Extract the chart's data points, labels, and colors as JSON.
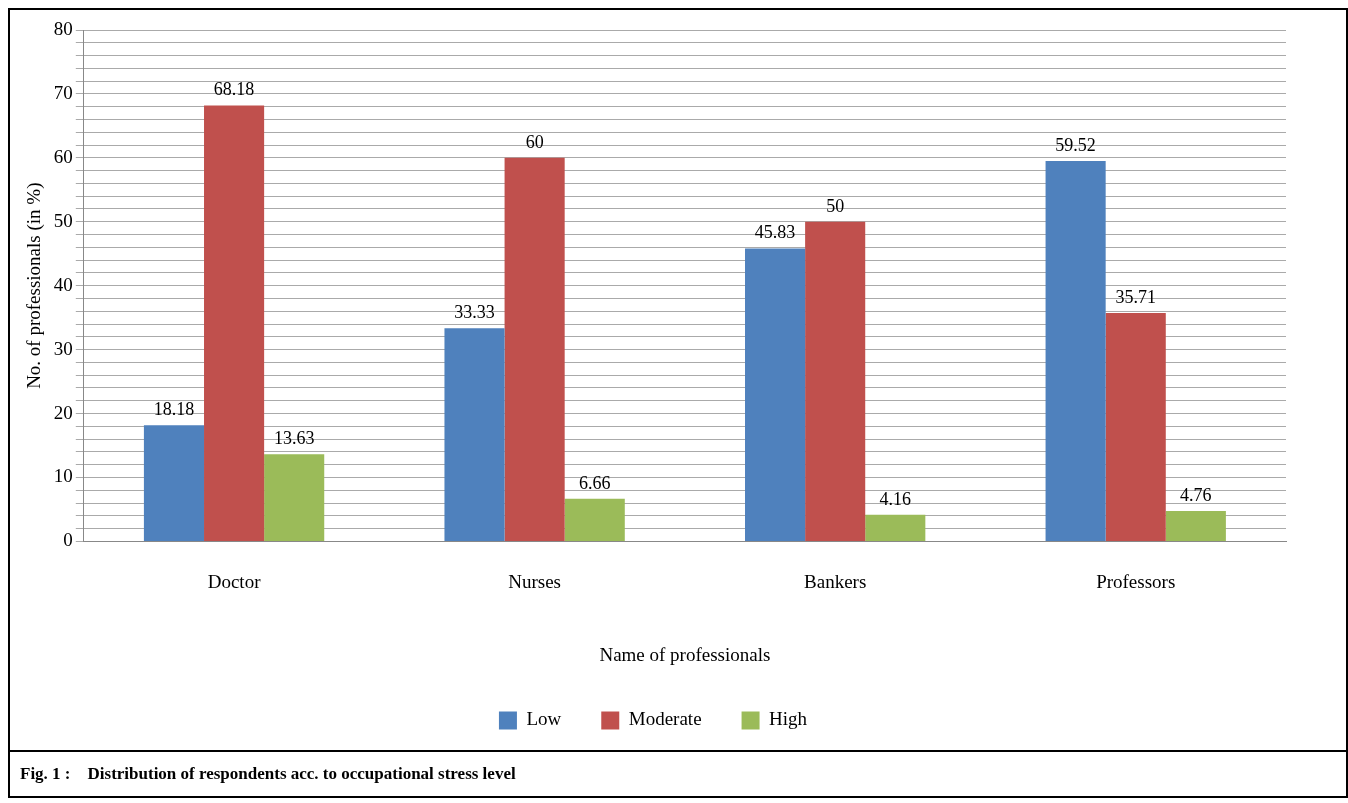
{
  "chart_data": {
    "type": "bar",
    "title": "Fig. 1 :    Distribution of respondents acc. to occupational stress level",
    "xlabel": "Name of professionals",
    "ylabel": "No. of professionals (in %)",
    "categories": [
      "Doctor",
      "Nurses",
      "Bankers",
      "Professors"
    ],
    "series": [
      {
        "name": "Low",
        "color": "#4f81bd",
        "values": [
          18.18,
          33.33,
          45.83,
          59.52
        ]
      },
      {
        "name": "Moderate",
        "color": "#c0504d",
        "values": [
          68.18,
          60,
          50,
          35.71
        ]
      },
      {
        "name": "High",
        "color": "#9bbb59",
        "values": [
          13.63,
          6.66,
          4.16,
          4.76
        ]
      }
    ],
    "ylim": [
      0,
      80
    ],
    "yticks": [
      0,
      {
        "value": 2,
        "label": null
      },
      {
        "value": 4,
        "label": null
      },
      {
        "value": 6,
        "label": null
      },
      {
        "value": 8,
        "label": null
      },
      10,
      {
        "value": 12,
        "label": null
      },
      {
        "value": 14,
        "label": null
      },
      {
        "value": 16,
        "label": null
      },
      {
        "value": 18,
        "label": null
      },
      20,
      {
        "value": 22,
        "label": null
      },
      {
        "value": 24,
        "label": null
      },
      {
        "value": 26,
        "label": null
      },
      {
        "value": 28,
        "label": null
      },
      30,
      {
        "value": 32,
        "label": null
      },
      {
        "value": 34,
        "label": null
      },
      {
        "value": 36,
        "label": null
      },
      {
        "value": 38,
        "label": null
      },
      40,
      {
        "value": 42,
        "label": null
      },
      {
        "value": 44,
        "label": null
      },
      {
        "value": 46,
        "label": null
      },
      {
        "value": 48,
        "label": null
      },
      50,
      {
        "value": 52,
        "label": null
      },
      {
        "value": 54,
        "label": null
      },
      {
        "value": 56,
        "label": null
      },
      {
        "value": 58,
        "label": null
      },
      60,
      {
        "value": 62,
        "label": null
      },
      {
        "value": 64,
        "label": null
      },
      {
        "value": 66,
        "label": null
      },
      {
        "value": 68,
        "label": null
      },
      70,
      {
        "value": 72,
        "label": null
      },
      {
        "value": 74,
        "label": null
      },
      {
        "value": 76,
        "label": null
      },
      {
        "value": 78,
        "label": null
      },
      80
    ],
    "grid": "y",
    "legend": "bottom",
    "data_labels": true
  }
}
